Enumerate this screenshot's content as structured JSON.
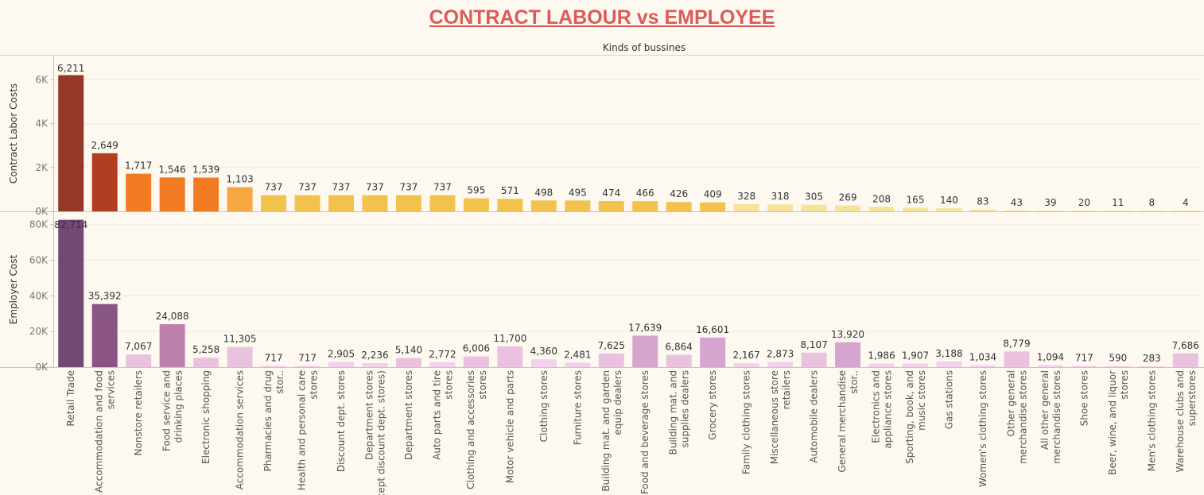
{
  "title": "CONTRACT LABOUR vs EMPLOYEE",
  "chart_data": {
    "type": "bar",
    "column_header": "Kinds of bussines",
    "categories": [
      "Retail Trade",
      "Accommodation and food services",
      "Nonstore retailers",
      "Food service and drinking places",
      "Electronic shopping",
      "Accommodation services",
      "Pharmacies and drug stor..",
      "Health and personal care stores",
      "Discount dept. stores",
      "Department stores (except discount dept. stores)",
      "Department stores",
      "Auto parts and tire stores",
      "Clothing and accessories stores",
      "Motor vehicle and parts",
      "Clothing stores",
      "Furniture stores",
      "Building mat. and garden equip dealers",
      "Food and beverage stores",
      "Building mat. and supplies dealers",
      "Grocery stores",
      "Family clothing stores",
      "Miscellaneous store retailers",
      "Automobile dealers",
      "General merchandise stor..",
      "Electronics and appliance stores",
      "Sporting, book, and music stores",
      "Gas stations",
      "Women's clothing stores",
      "Other general merchandise stores",
      "All other general merchandise stores",
      "Shoe stores",
      "Beer, wine, and liquor stores",
      "Men's clothing stores",
      "Warehouse clubs and superstores"
    ],
    "series": [
      {
        "name": "Contract Labor Costs",
        "ylabel": "Contract Labor Costs",
        "values": [
          6211,
          2649,
          1717,
          1546,
          1539,
          1103,
          737,
          737,
          737,
          737,
          737,
          737,
          595,
          571,
          498,
          495,
          474,
          466,
          426,
          409,
          328,
          318,
          305,
          269,
          208,
          165,
          140,
          83,
          43,
          39,
          20,
          11,
          8,
          4
        ],
        "labels": [
          "6,211",
          "2,649",
          "1,717",
          "1,546",
          "1,539",
          "1,103",
          "737",
          "737",
          "737",
          "737",
          "737",
          "737",
          "595",
          "571",
          "498",
          "495",
          "474",
          "466",
          "426",
          "409",
          "328",
          "318",
          "305",
          "269",
          "208",
          "165",
          "140",
          "83",
          "43",
          "39",
          "20",
          "11",
          "8",
          "4"
        ],
        "ylim": [
          0,
          7100
        ],
        "ticks": [
          0,
          2000,
          4000,
          6000
        ],
        "tick_labels": [
          "0K",
          "2K",
          "4K",
          "6K"
        ],
        "color_scale": [
          "#f6e49a",
          "#f3c24e",
          "#f5a742",
          "#f07b22",
          "#b23e22",
          "#963827"
        ]
      },
      {
        "name": "Employer Cost",
        "ylabel": "Employer Cost",
        "values": [
          82714,
          35392,
          7067,
          24088,
          5258,
          11305,
          717,
          717,
          2905,
          2236,
          5140,
          2772,
          6006,
          11700,
          4360,
          2481,
          7625,
          17639,
          6864,
          16601,
          2167,
          2873,
          8107,
          13920,
          1986,
          1907,
          3188,
          1034,
          8779,
          1094,
          717,
          590,
          283,
          7686
        ],
        "labels": [
          "82,714",
          "35,392",
          "7,067",
          "24,088",
          "5,258",
          "11,305",
          "717",
          "717",
          "2,905",
          "2,236",
          "5,140",
          "2,772",
          "6,006",
          "11,700",
          "4,360",
          "2,481",
          "7,625",
          "17,639",
          "6,864",
          "16,601",
          "2,167",
          "2,873",
          "8,107",
          "13,920",
          "1,986",
          "1,907",
          "3,188",
          "1,034",
          "8,779",
          "1,094",
          "717",
          "590",
          "283",
          "7,686"
        ],
        "ylim": [
          0,
          87000
        ],
        "ticks": [
          0,
          20000,
          40000,
          60000,
          80000
        ],
        "tick_labels": [
          "0K",
          "20K",
          "40K",
          "60K",
          "80K"
        ],
        "color_scale": [
          "#f3d1ea",
          "#eac2e0",
          "#d6a5cf",
          "#bd80ad",
          "#8a5585",
          "#724875"
        ]
      }
    ],
    "grid": true,
    "legend": "none"
  }
}
